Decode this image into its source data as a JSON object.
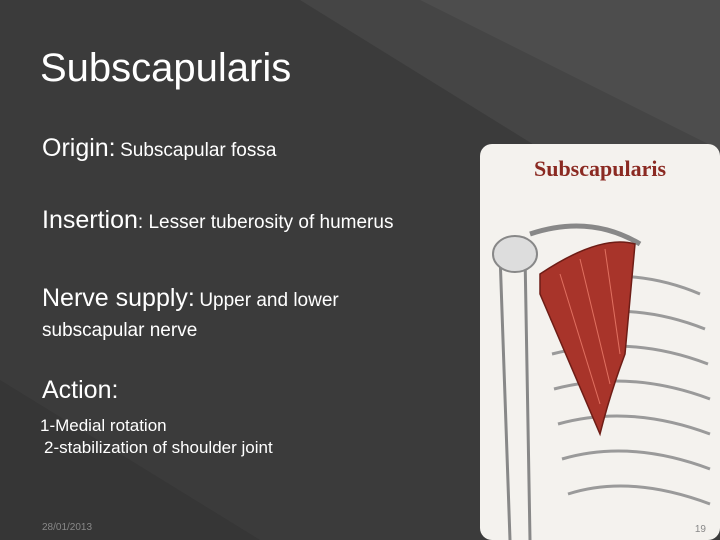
{
  "slide": {
    "title": "Subscapularis",
    "origin": {
      "label": "Origin:",
      "text": "Subscapular fossa"
    },
    "insertion": {
      "label": "Insertion",
      "text": ": Lesser tuberosity of humerus"
    },
    "nerve": {
      "label": "Nerve supply:",
      "text": "Upper and lower",
      "text2": "subscapular nerve"
    },
    "action": {
      "label": "Action:",
      "lines": [
        "1-Medial rotation",
        "2-stabilization of shoulder joint"
      ]
    },
    "image_caption": "Subscapularis",
    "footer": {
      "date": "28/01/2013",
      "page": "19"
    }
  }
}
